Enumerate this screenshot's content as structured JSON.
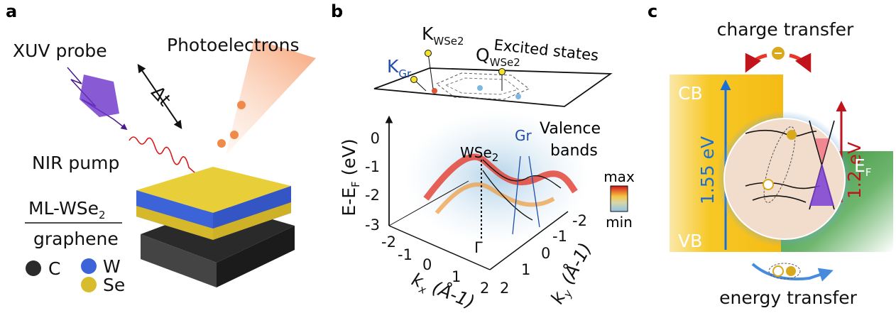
{
  "panel_a": {
    "label": "a",
    "xuv_probe": "XUV probe",
    "photoelectrons": "Photoelectrons",
    "delta_t": "Δt",
    "nir_pump": "NIR pump",
    "top_material": {
      "main": "ML-WSe",
      "sub": "2"
    },
    "bottom_material": "graphene",
    "legend": [
      "C",
      "W",
      "Se"
    ]
  },
  "panel_b": {
    "label": "b",
    "k_wse2": {
      "main": "K",
      "sub": "WSe2"
    },
    "excited_states": "Excited states",
    "k_gr": {
      "main": "K",
      "sub": "Gr"
    },
    "q_wse2": {
      "main": "Q",
      "sub": "WSe2"
    },
    "valence_bands": [
      "Valence",
      "bands"
    ],
    "band_wse2": {
      "main": "WSe",
      "sub": "2"
    },
    "band_gr": "Gr",
    "energy_label": {
      "pre": "E-E",
      "sub": "F",
      "post": " (eV)"
    },
    "energy_ticks": [
      "0",
      "-1",
      "-2",
      "-3"
    ],
    "kx_ticks": [
      "-2",
      "-1",
      "0",
      "1",
      "2"
    ],
    "ky_ticks": [
      "-2",
      "-1",
      "0",
      "1",
      "2"
    ],
    "gamma": "Γ",
    "kx_label": {
      "main": "k",
      "sub": "x",
      "unit": " (Å-1)"
    },
    "ky_label": {
      "main": "k",
      "sub": "y",
      "unit": " (Å-1)"
    },
    "colorbar": {
      "max": "max",
      "min": "min"
    }
  },
  "panel_c": {
    "label": "c",
    "charge_transfer": "charge transfer",
    "cb": "CB",
    "vb": "VB",
    "gap_energy": "1.55 eV",
    "pump_energy": "1.2 eV",
    "fermi": {
      "main": "E",
      "sub": "F"
    },
    "energy_transfer": "energy transfer"
  }
}
